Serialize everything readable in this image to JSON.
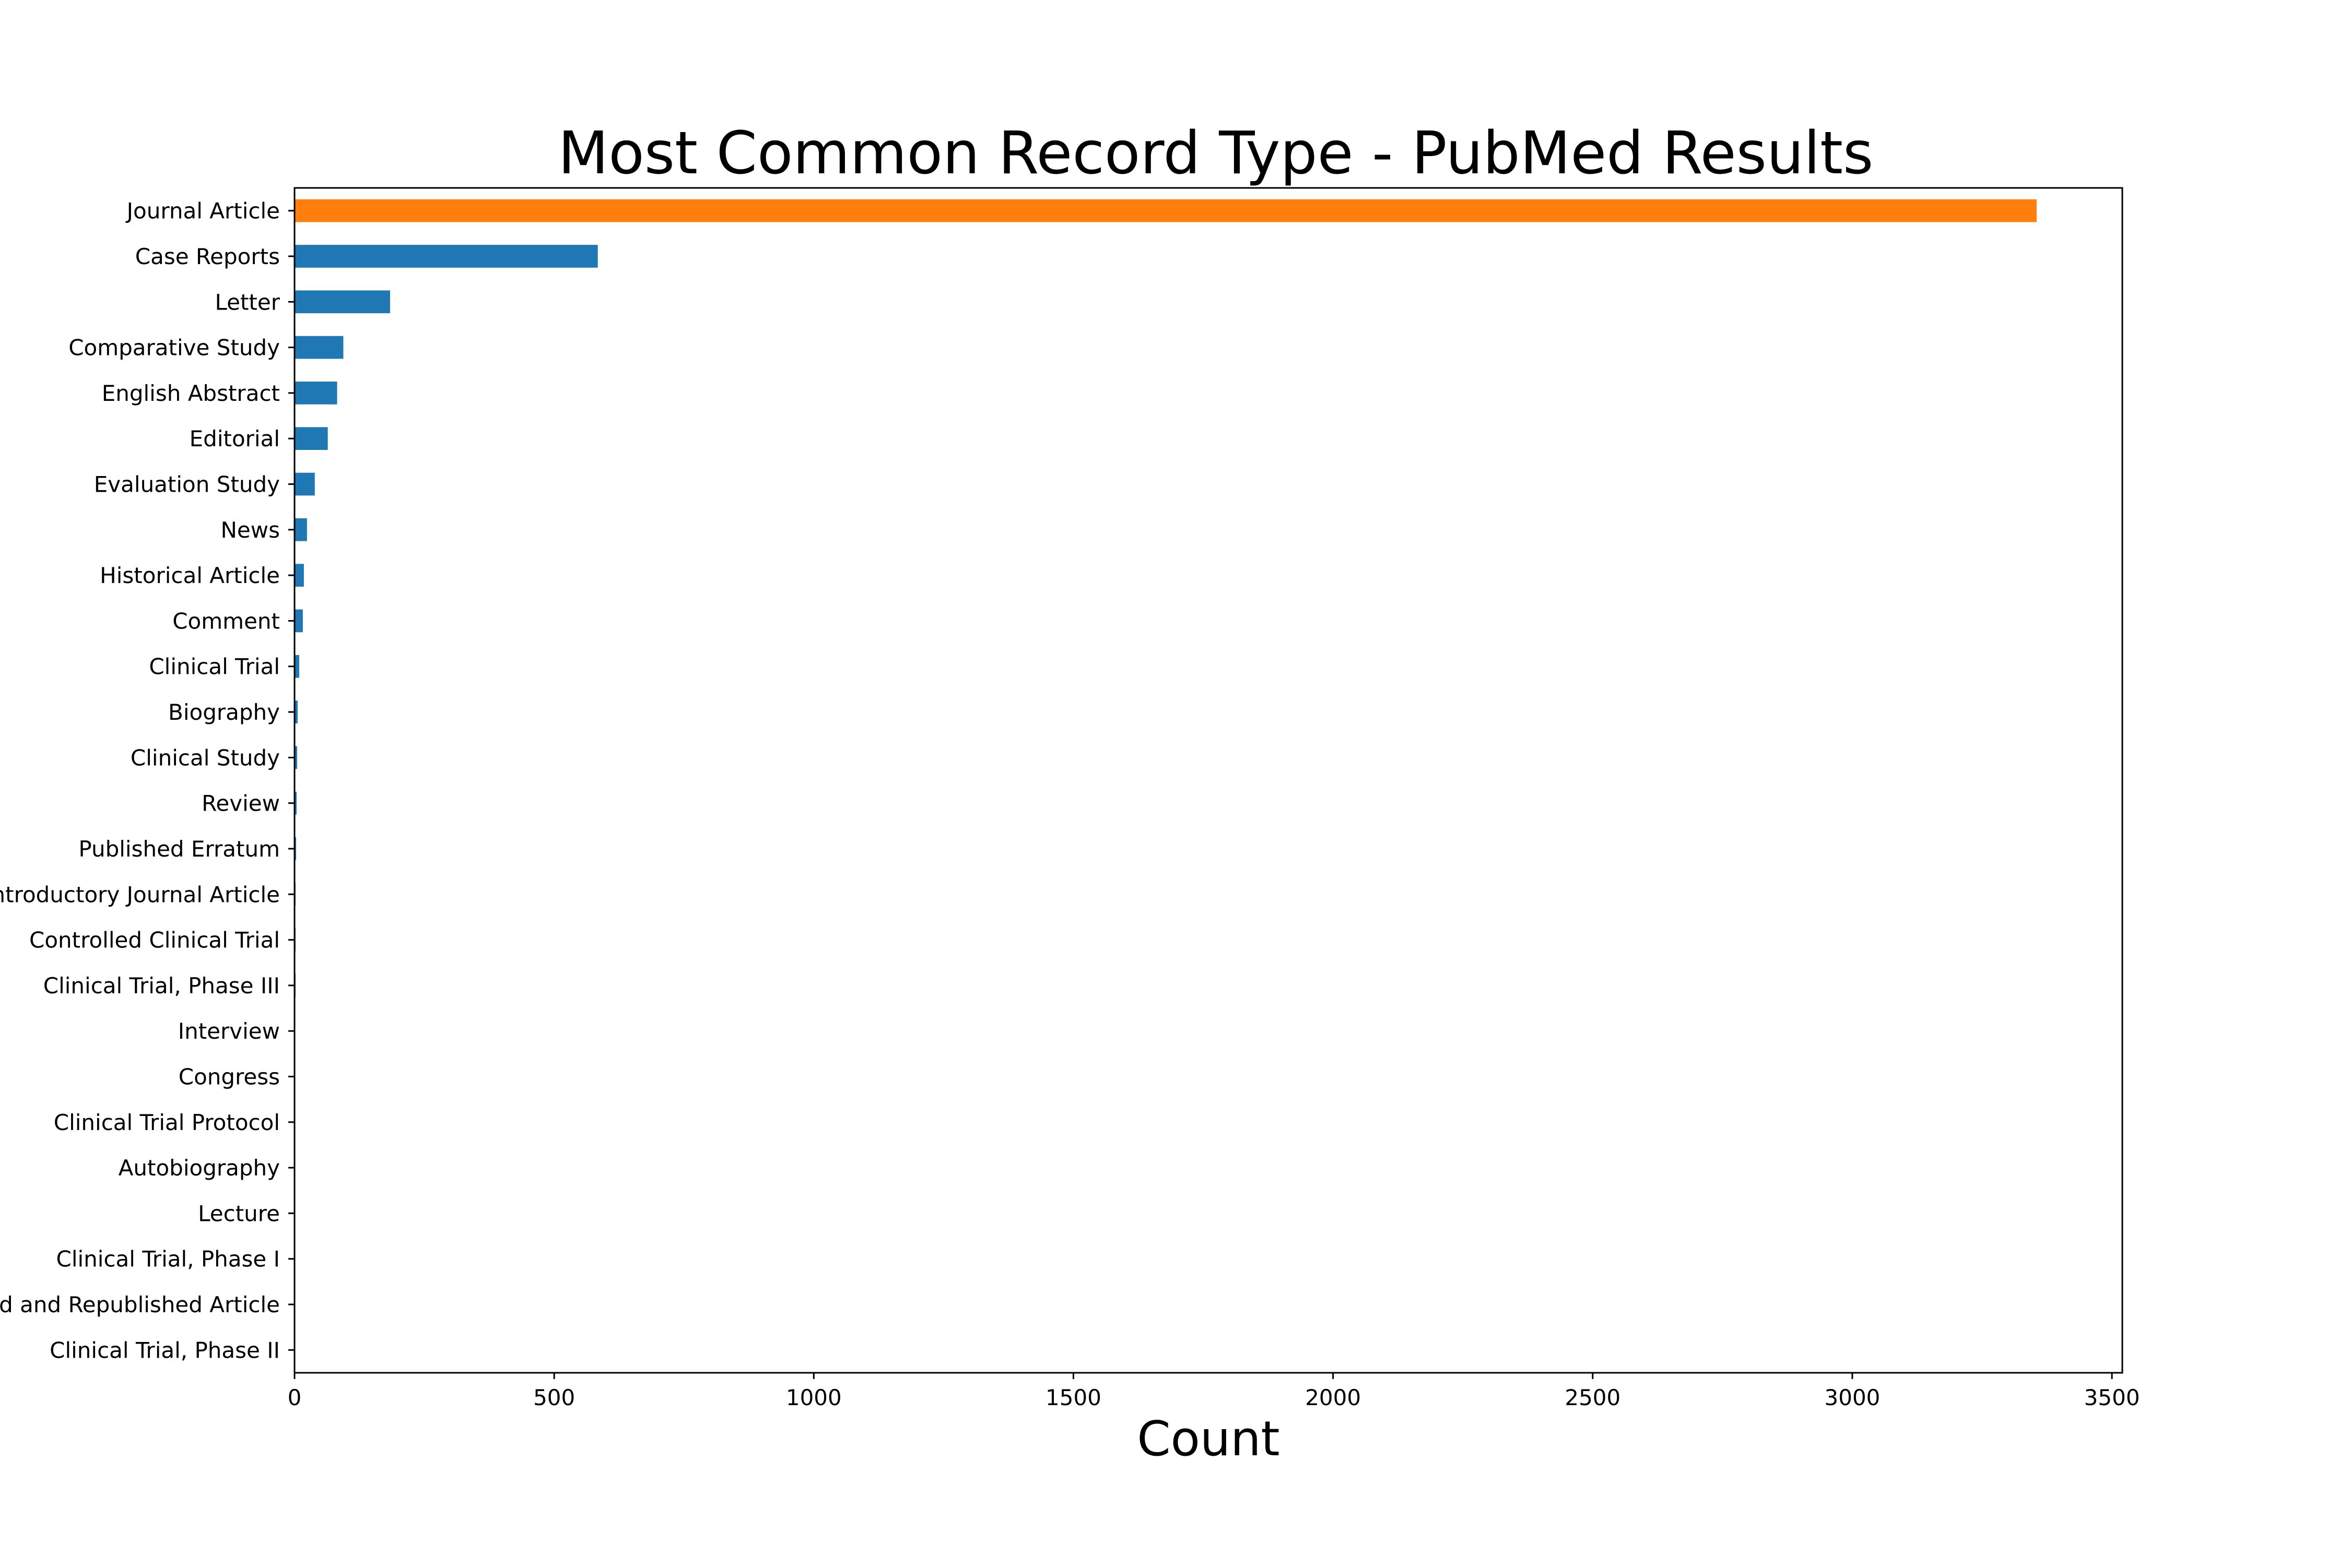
{
  "chart_data": {
    "type": "bar",
    "orientation": "horizontal",
    "title": "Most Common Record Type - PubMed Results",
    "xlabel": "Count",
    "ylabel": "",
    "xlim": [
      0,
      3520
    ],
    "x_ticks": [
      0,
      500,
      1000,
      1500,
      2000,
      2500,
      3000,
      3500
    ],
    "grid": false,
    "legend": "none",
    "categories": [
      "Journal Article",
      "Case Reports",
      "Letter",
      "Comparative Study",
      "English Abstract",
      "Editorial",
      "Evaluation Study",
      "News",
      "Historical Article",
      "Comment",
      "Clinical Trial",
      "Biography",
      "Clinical Study",
      "Review",
      "Published Erratum",
      "Introductory Journal Article",
      "Controlled Clinical Trial",
      "Clinical Trial, Phase III",
      "Interview",
      "Congress",
      "Clinical Trial Protocol",
      "Autobiography",
      "Lecture",
      "Clinical Trial, Phase I",
      "Retracted and Republished Article",
      "Clinical Trial, Phase II"
    ],
    "values": [
      3355,
      584,
      184,
      94,
      82,
      64,
      39,
      24,
      18,
      16,
      9,
      6,
      5,
      4,
      3,
      2,
      2,
      2,
      1,
      1,
      1,
      1,
      1,
      1,
      1,
      1
    ],
    "colors": {
      "highlight": "#ff7f0e",
      "default": "#1f77b4",
      "axis": "#000000"
    },
    "highlight_index": 0
  }
}
